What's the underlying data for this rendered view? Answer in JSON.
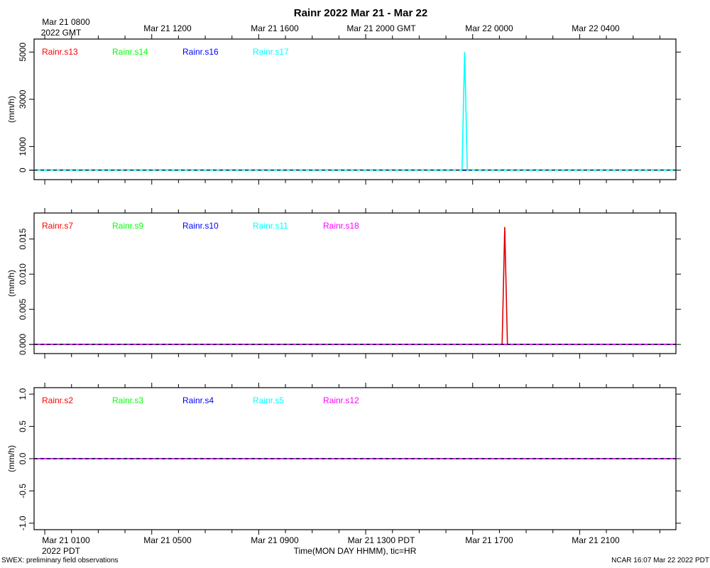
{
  "title": "Rainr 2022 Mar 21 - Mar 22",
  "top_axis": {
    "labels": [
      "Mar 21 1200",
      "Mar 21 1600",
      "Mar 21 2000 GMT",
      "Mar 22 0000",
      "Mar 22 0400"
    ],
    "first_label_line1": "Mar 21 0800",
    "first_label_line2": "2022 GMT"
  },
  "bottom_axis": {
    "labels": [
      "Mar 21 0500",
      "Mar 21 0900",
      "Mar 21 1300 PDT",
      "Mar 21 1700",
      "Mar 21 2100"
    ],
    "first_label_line1": "Mar 21 0100",
    "first_label_line2": "2022 PDT",
    "xlabel": "Time(MON DAY HHMM), tic=HR"
  },
  "footer": {
    "left": "SWEX: preliminary field observations",
    "right": "NCAR 16:07 Mar 22 2022 PDT"
  },
  "colors": {
    "red": "#ff0000",
    "green": "#00ff00",
    "blue": "#0000ff",
    "cyan": "#00ffff",
    "magenta": "#ff00ff",
    "line_red": "#e00000"
  },
  "chart_data": [
    {
      "type": "line",
      "ylabel": "(mm/h)",
      "ylim": [
        -400,
        5550
      ],
      "yticks": [
        0,
        1000,
        3000,
        5000
      ],
      "yticklabels": [
        "0",
        "1000",
        "3000",
        "5000"
      ],
      "x_unit": "hours since Mar 21 0000 PDT",
      "xlim": [
        0.6,
        24.6
      ],
      "series": [
        {
          "name": "Rainr.s13",
          "color": "red",
          "x": [
            0.6,
            24.6
          ],
          "y": [
            0,
            0
          ]
        },
        {
          "name": "Rainr.s14",
          "color": "green",
          "x": [
            0.6,
            24.6
          ],
          "y": [
            0,
            0
          ]
        },
        {
          "name": "Rainr.s16",
          "color": "blue",
          "x": [
            0.6,
            24.6
          ],
          "y": [
            0,
            0
          ]
        },
        {
          "name": "Rainr.s17",
          "color": "cyan",
          "x": [
            0.6,
            16.6,
            16.7,
            16.8,
            24.6
          ],
          "y": [
            0,
            0,
            5000,
            0,
            0
          ]
        }
      ]
    },
    {
      "type": "line",
      "ylabel": "(mm/h)",
      "ylim": [
        -0.0013,
        0.0187
      ],
      "yticks": [
        0,
        0.005,
        0.01,
        0.015
      ],
      "yticklabels": [
        "0.000",
        "0.005",
        "0.010",
        "0.015"
      ],
      "x_unit": "hours since Mar 21 0000 PDT",
      "xlim": [
        0.6,
        24.6
      ],
      "series": [
        {
          "name": "Rainr.s7",
          "color": "red",
          "x": [
            0.6,
            18.1,
            18.2,
            18.3,
            24.6
          ],
          "y": [
            0,
            0,
            0.0167,
            0,
            0
          ]
        },
        {
          "name": "Rainr.s9",
          "color": "green",
          "x": [
            0.6,
            24.6
          ],
          "y": [
            0,
            0
          ]
        },
        {
          "name": "Rainr.s10",
          "color": "blue",
          "x": [
            0.6,
            24.6
          ],
          "y": [
            0,
            0
          ]
        },
        {
          "name": "Rainr.s11",
          "color": "cyan",
          "x": [
            0.6,
            24.6
          ],
          "y": [
            0,
            0
          ]
        },
        {
          "name": "Rainr.s18",
          "color": "magenta",
          "x": [
            0.6,
            24.6
          ],
          "y": [
            0,
            0
          ]
        }
      ]
    },
    {
      "type": "line",
      "ylabel": "(mm/h)",
      "ylim": [
        -1.1,
        1.1
      ],
      "yticks": [
        -1.0,
        -0.5,
        0.0,
        0.5,
        1.0
      ],
      "yticklabels": [
        "-1.0",
        "-0.5",
        "0.0",
        "0.5",
        "1.0"
      ],
      "x_unit": "hours since Mar 21 0000 PDT",
      "xlim": [
        0.6,
        24.6
      ],
      "series": [
        {
          "name": "Rainr.s2",
          "color": "red",
          "x": [
            0.6,
            24.6
          ],
          "y": [
            0,
            0
          ]
        },
        {
          "name": "Rainr.s3",
          "color": "green",
          "x": [
            0.6,
            24.6
          ],
          "y": [
            0,
            0
          ]
        },
        {
          "name": "Rainr.s4",
          "color": "blue",
          "x": [
            0.6,
            24.6
          ],
          "y": [
            0,
            0
          ]
        },
        {
          "name": "Rainr.s5",
          "color": "cyan",
          "x": [
            0.6,
            24.6
          ],
          "y": [
            0,
            0
          ]
        },
        {
          "name": "Rainr.s12",
          "color": "magenta",
          "x": [
            0.6,
            24.6
          ],
          "y": [
            0,
            0
          ]
        }
      ]
    }
  ]
}
